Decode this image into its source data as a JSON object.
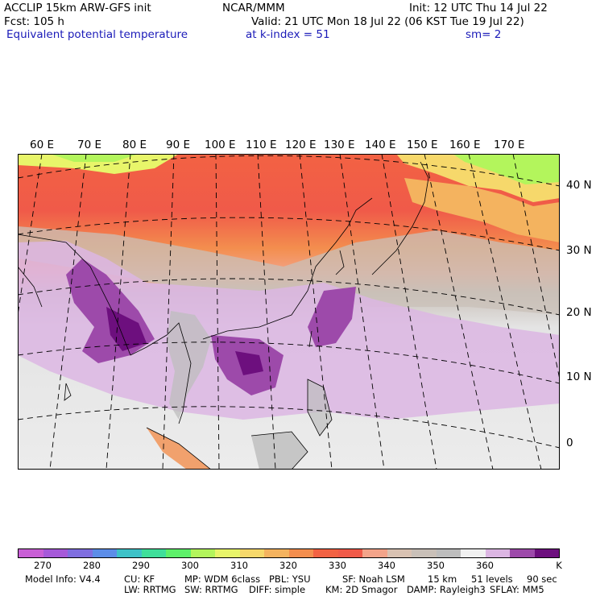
{
  "header": {
    "model": "ACCLIP 15km ARW-GFS init",
    "org": "NCAR/MMM",
    "init": "Init: 12 UTC Thu 14 Jul 22",
    "fcst": "Fcst:  105 h",
    "valid": "Valid: 21 UTC Mon 18 Jul 22 (06 KST Tue 19 Jul 22)",
    "field": "Equivalent potential temperature",
    "level": "at k-index =  51",
    "smooth": "sm= 2"
  },
  "map": {
    "lon_labels": [
      "60 E",
      "70 E",
      "80 E",
      "90 E",
      "100 E",
      "110 E",
      "120 E",
      "130 E",
      "140 E",
      "150 E",
      "160 E",
      "170 E"
    ],
    "lat_labels": [
      "40 N",
      "30 N",
      "20 N",
      "10 N",
      "0"
    ]
  },
  "colorbar": {
    "colors": [
      "#c95fd6",
      "#a659d9",
      "#7f6ee0",
      "#5c8de8",
      "#3ec2c8",
      "#3fdf9a",
      "#5ef06a",
      "#b3f55c",
      "#e8f56a",
      "#f6d86b",
      "#f4b35f",
      "#f38e4e",
      "#f26243",
      "#f05a49",
      "#f3a48a",
      "#d9c2b2",
      "#c9c0b8",
      "#bdbdbd",
      "#f0f0f0",
      "#dcb6e3",
      "#9d4aaa",
      "#6d0f7e"
    ],
    "tick_labels": [
      "270",
      "280",
      "290",
      "300",
      "310",
      "320",
      "330",
      "340",
      "350",
      "360"
    ],
    "unit": "K"
  },
  "footer": {
    "line1": [
      "Model Info: V4.4",
      "CU: KF",
      "MP: WDM 6class",
      "PBL: YSU",
      "SF: Noah LSM",
      "15 km",
      "51 levels",
      "90 sec"
    ],
    "line2": [
      "LW: RRTMG",
      "SW: RRTMG",
      "DIFF: simple",
      "KM: 2D Smagor",
      "DAMP: Rayleigh3",
      "SFLAY: MM5"
    ]
  }
}
